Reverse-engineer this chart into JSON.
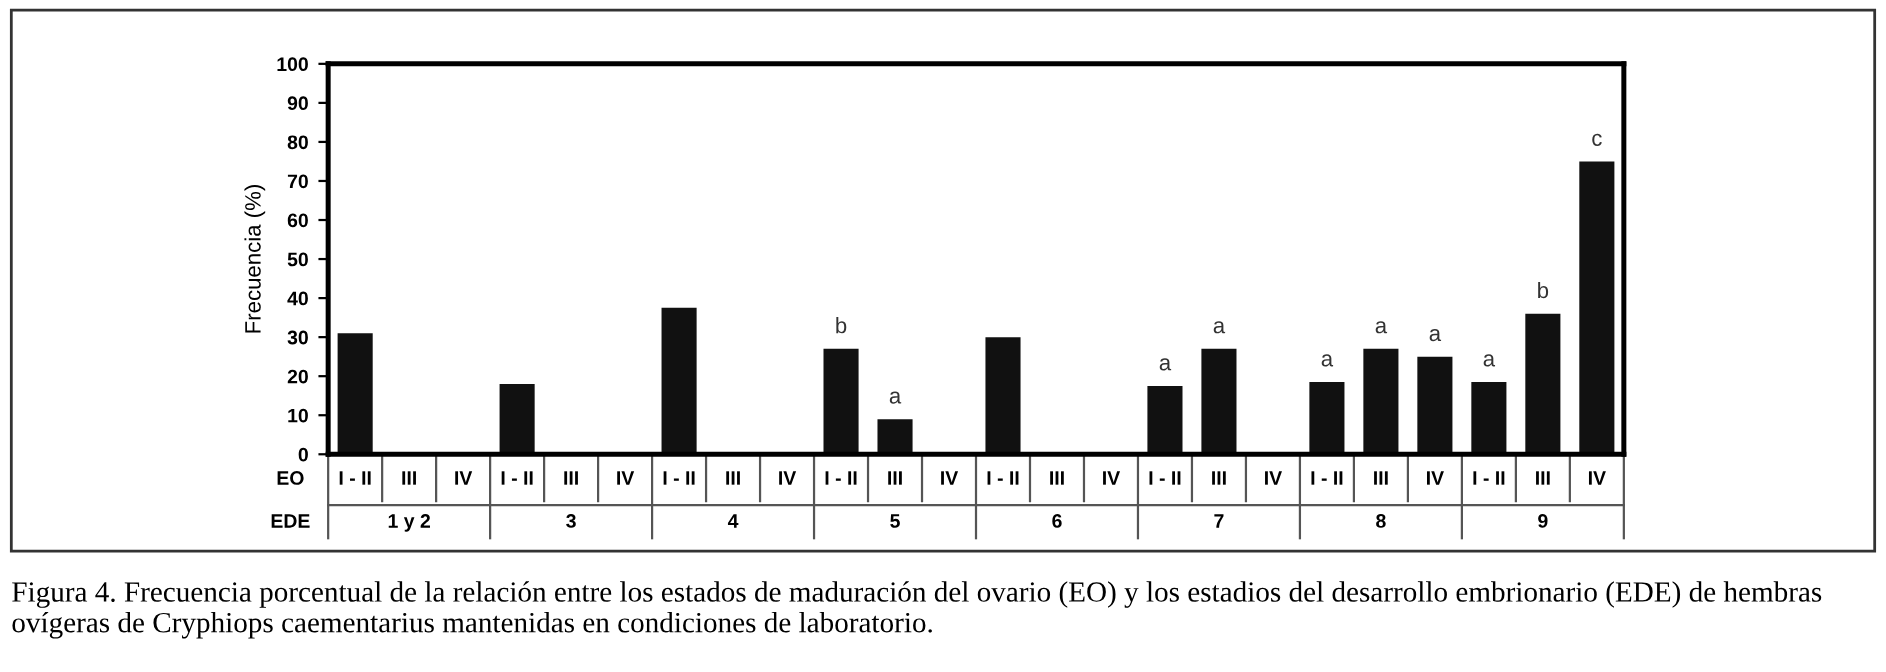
{
  "chart_data": {
    "type": "bar",
    "ylabel": "Frecuencia (%)",
    "categories": [
      "I - II",
      "III",
      "IV",
      "I - II",
      "III",
      "IV",
      "I - II",
      "III",
      "IV",
      "I - II",
      "III",
      "IV",
      "I - II",
      "III",
      "IV",
      "I - II",
      "III",
      "IV",
      "I - II",
      "III",
      "IV",
      "I - II",
      "III",
      "IV"
    ],
    "values": [
      31,
      0,
      0,
      18,
      0,
      0,
      37.5,
      0,
      0,
      27,
      9,
      0,
      30,
      0,
      0,
      17.5,
      27,
      0,
      18.5,
      27,
      25,
      18.5,
      36,
      75
    ],
    "value_labels": [
      null,
      null,
      null,
      null,
      null,
      null,
      null,
      null,
      null,
      "b",
      "a",
      null,
      null,
      null,
      null,
      "a",
      "a",
      null,
      "a",
      "a",
      "a",
      "a",
      "b",
      "c"
    ],
    "color": "#111111",
    "ylim": [
      0,
      100
    ],
    "yticks": [
      0,
      10,
      20,
      30,
      40,
      50,
      60,
      70,
      80,
      90,
      100
    ],
    "grid": false,
    "annotations": [
      "EO",
      "EDE",
      "1 y 2",
      "3",
      "4",
      "5",
      "6",
      "7",
      "8",
      "9",
      "Figura 4. Frecuencia porcentual de la relación entre los estados de maduración del ovario (EO) y los estadios del desarrollo embrionario (EDE) de hembras ovígeras de Cryphiops caementarius mantenidas en condiciones de laboratorio."
    ]
  }
}
